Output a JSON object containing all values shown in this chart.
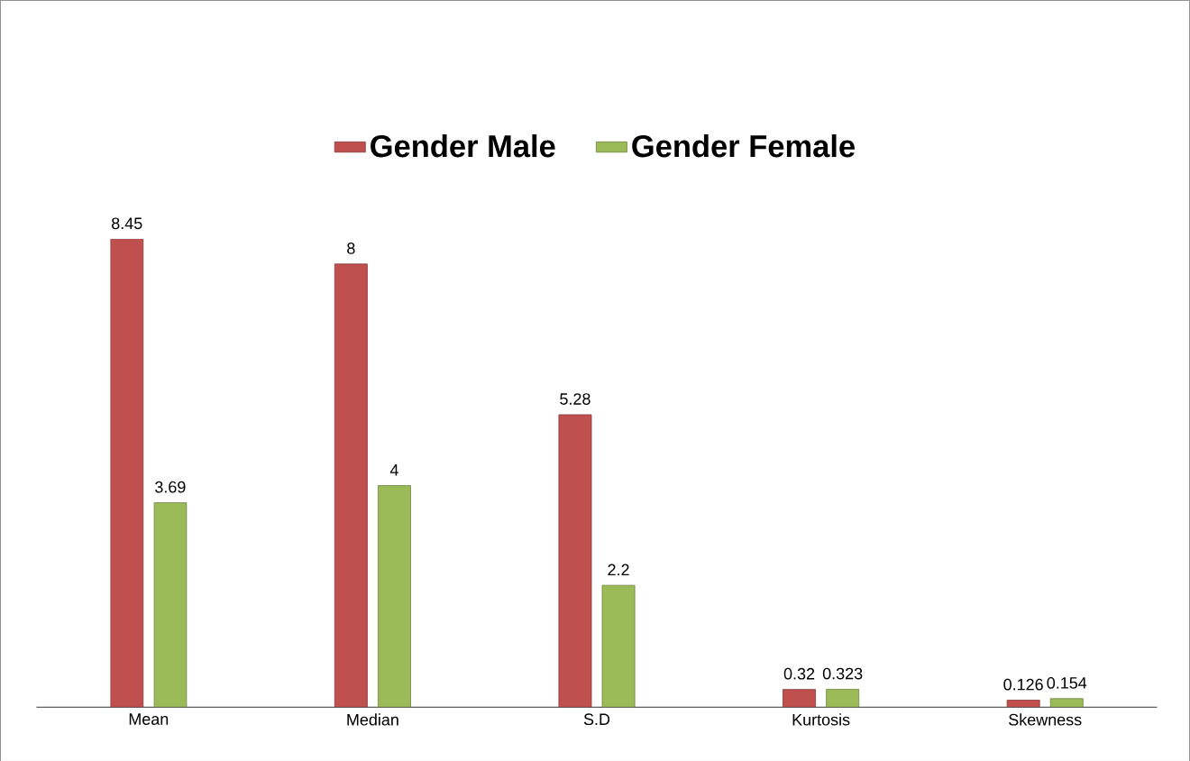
{
  "chart_data": {
    "type": "bar",
    "categories": [
      "Mean",
      "Median",
      "S.D",
      "Kurtosis",
      "Skewness"
    ],
    "series": [
      {
        "name": "Gender Male",
        "color": "#c0504d",
        "values": [
          8.45,
          8,
          5.28,
          0.32,
          0.126
        ]
      },
      {
        "name": "Gender Female",
        "color": "#9bbb59",
        "values": [
          3.69,
          4,
          2.2,
          0.323,
          0.154
        ]
      }
    ],
    "data_labels": true,
    "legend": "top"
  }
}
